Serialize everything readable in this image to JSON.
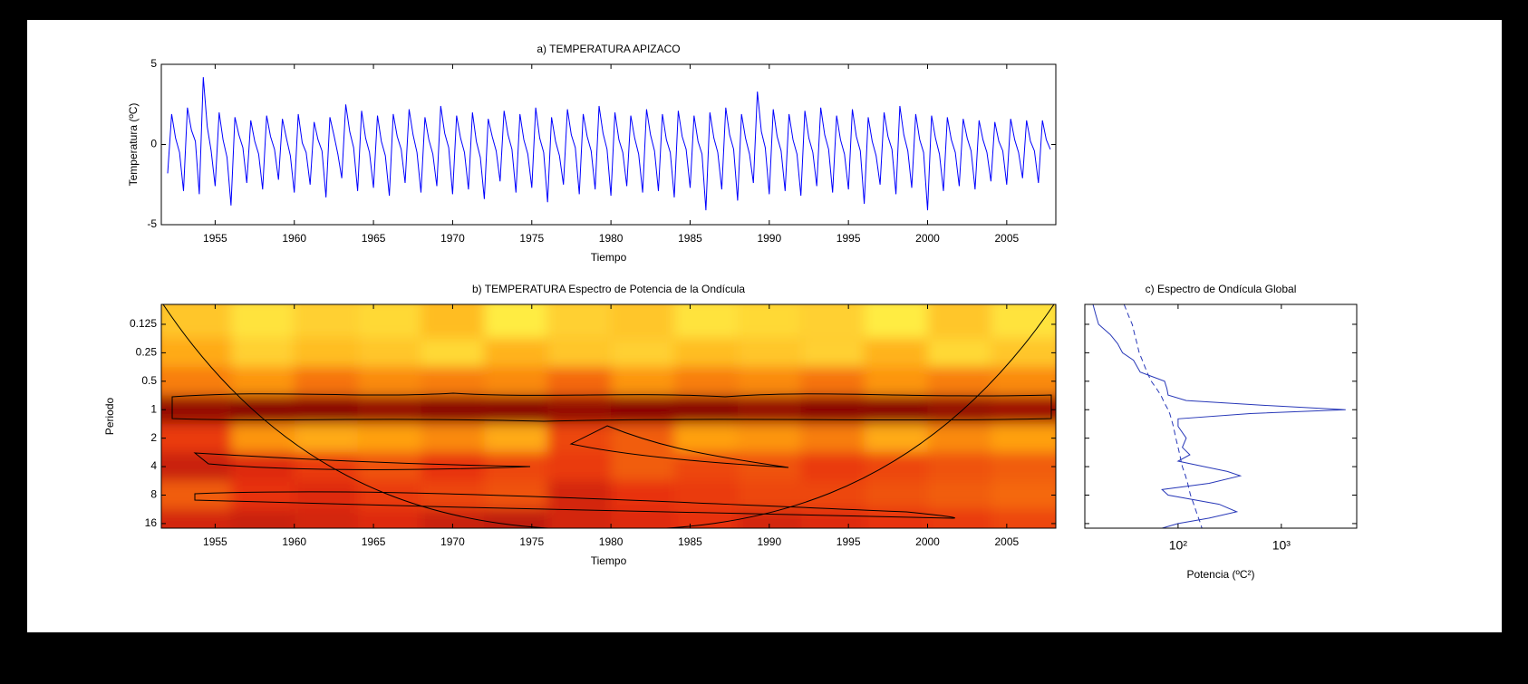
{
  "chart_data": [
    {
      "type": "line",
      "title": "a) TEMPERATURA APIZACO",
      "xlabel": "Tiempo",
      "ylabel": "Temperatura  (ºC)",
      "xlim": [
        1951.6,
        2008.1
      ],
      "ylim": [
        -5,
        5
      ],
      "xticks": [
        1955,
        1960,
        1965,
        1970,
        1975,
        1980,
        1985,
        1990,
        1995,
        2000,
        2005
      ],
      "yticks": [
        -5,
        0,
        5
      ],
      "x": [
        1952,
        1952.25,
        1952.5,
        1952.75,
        1953,
        1953.25,
        1953.5,
        1953.75,
        1954,
        1954.25,
        1954.5,
        1954.75,
        1955,
        1955.25,
        1955.5,
        1955.75,
        1956,
        1956.25,
        1956.5,
        1956.75,
        1957,
        1957.25,
        1957.5,
        1957.75,
        1958,
        1958.25,
        1958.5,
        1958.75,
        1959,
        1959.25,
        1959.5,
        1959.75,
        1960,
        1960.25,
        1960.5,
        1960.75,
        1961,
        1961.25,
        1961.5,
        1961.75,
        1962,
        1962.25,
        1962.5,
        1962.75,
        1963,
        1963.25,
        1963.5,
        1963.75,
        1964,
        1964.25,
        1964.5,
        1964.75,
        1965,
        1965.25,
        1965.5,
        1965.75,
        1966,
        1966.25,
        1966.5,
        1966.75,
        1967,
        1967.25,
        1967.5,
        1967.75,
        1968,
        1968.25,
        1968.5,
        1968.75,
        1969,
        1969.25,
        1969.5,
        1969.75,
        1970,
        1970.25,
        1970.5,
        1970.75,
        1971,
        1971.25,
        1971.5,
        1971.75,
        1972,
        1972.25,
        1972.5,
        1972.75,
        1973,
        1973.25,
        1973.5,
        1973.75,
        1974,
        1974.25,
        1974.5,
        1974.75,
        1975,
        1975.25,
        1975.5,
        1975.75,
        1976,
        1976.25,
        1976.5,
        1976.75,
        1977,
        1977.25,
        1977.5,
        1977.75,
        1978,
        1978.25,
        1978.5,
        1978.75,
        1979,
        1979.25,
        1979.5,
        1979.75,
        1980,
        1980.25,
        1980.5,
        1980.75,
        1981,
        1981.25,
        1981.5,
        1981.75,
        1982,
        1982.25,
        1982.5,
        1982.75,
        1983,
        1983.25,
        1983.5,
        1983.75,
        1984,
        1984.25,
        1984.5,
        1984.75,
        1985,
        1985.25,
        1985.5,
        1985.75,
        1986,
        1986.25,
        1986.5,
        1986.75,
        1987,
        1987.25,
        1987.5,
        1987.75,
        1988,
        1988.25,
        1988.5,
        1988.75,
        1989,
        1989.25,
        1989.5,
        1989.75,
        1990,
        1990.25,
        1990.5,
        1990.75,
        1991,
        1991.25,
        1991.5,
        1991.75,
        1992,
        1992.25,
        1992.5,
        1992.75,
        1993,
        1993.25,
        1993.5,
        1993.75,
        1994,
        1994.25,
        1994.5,
        1994.75,
        1995,
        1995.25,
        1995.5,
        1995.75,
        1996,
        1996.25,
        1996.5,
        1996.75,
        1997,
        1997.25,
        1997.5,
        1997.75,
        1998,
        1998.25,
        1998.5,
        1998.75,
        1999,
        1999.25,
        1999.5,
        1999.75,
        2000,
        2000.25,
        2000.5,
        2000.75,
        2001,
        2001.25,
        2001.5,
        2001.75,
        2002,
        2002.25,
        2002.5,
        2002.75,
        2003,
        2003.25,
        2003.5,
        2003.75,
        2004,
        2004.25,
        2004.5,
        2004.75,
        2005,
        2005.25,
        2005.5,
        2005.75,
        2006,
        2006.25,
        2006.5,
        2006.75,
        2007,
        2007.25,
        2007.5,
        2007.75
      ],
      "series": [
        {
          "color": "#0000ff",
          "values": [
            -1.8,
            1.9,
            0.4,
            -0.5,
            -2.9,
            2.3,
            0.9,
            0.2,
            -3.1,
            4.2,
            1.1,
            -0.4,
            -2.6,
            2.0,
            0.3,
            -0.8,
            -3.8,
            1.7,
            0.6,
            -0.2,
            -2.4,
            1.5,
            0.2,
            -0.6,
            -2.8,
            1.8,
            0.5,
            -0.3,
            -2.2,
            1.6,
            0.4,
            -0.7,
            -3.0,
            1.9,
            0.1,
            -0.5,
            -2.5,
            1.4,
            0.3,
            -0.4,
            -3.3,
            1.7,
            0.6,
            -0.6,
            -2.1,
            2.5,
            0.8,
            -0.2,
            -2.9,
            2.1,
            0.4,
            -0.5,
            -2.7,
            1.8,
            0.2,
            -0.7,
            -3.2,
            1.9,
            0.5,
            -0.3,
            -2.4,
            2.2,
            0.6,
            -0.5,
            -3.0,
            1.7,
            0.3,
            -0.6,
            -2.6,
            2.4,
            0.7,
            -0.2,
            -3.1,
            1.8,
            0.4,
            -0.5,
            -2.8,
            2.0,
            0.2,
            -0.8,
            -3.4,
            1.6,
            0.5,
            -0.4,
            -2.3,
            2.1,
            0.6,
            -0.3,
            -3.0,
            1.9,
            0.3,
            -0.6,
            -2.7,
            2.3,
            0.4,
            -0.5,
            -3.6,
            1.7,
            0.2,
            -0.7,
            -2.5,
            2.2,
            0.6,
            -0.2,
            -3.1,
            1.9,
            0.5,
            -0.4,
            -2.8,
            2.4,
            0.7,
            -0.3,
            -3.2,
            2.0,
            0.3,
            -0.5,
            -2.6,
            1.8,
            0.4,
            -0.6,
            -3.0,
            2.2,
            0.6,
            -0.4,
            -2.9,
            1.9,
            0.3,
            -0.5,
            -3.3,
            2.1,
            0.5,
            -0.3,
            -2.7,
            1.8,
            0.2,
            -0.6,
            -4.1,
            2.0,
            0.4,
            -0.5,
            -2.8,
            2.3,
            0.6,
            -0.3,
            -3.5,
            1.9,
            0.4,
            -0.6,
            -2.4,
            3.3,
            0.8,
            -0.2,
            -3.1,
            2.2,
            0.5,
            -0.4,
            -2.9,
            1.9,
            0.3,
            -0.6,
            -3.2,
            2.1,
            0.4,
            -0.5,
            -2.6,
            2.3,
            0.6,
            -0.3,
            -3.0,
            1.8,
            0.3,
            -0.6,
            -2.8,
            2.2,
            0.5,
            -0.4,
            -3.7,
            1.7,
            0.2,
            -0.7,
            -2.5,
            2.0,
            0.5,
            -0.3,
            -3.1,
            2.4,
            0.6,
            -0.4,
            -2.7,
            1.9,
            0.3,
            -0.5,
            -4.1,
            1.8,
            0.4,
            -0.6,
            -2.9,
            1.7,
            0.3,
            -0.5,
            -2.6,
            1.6,
            0.4,
            -0.4,
            -2.8,
            1.5,
            0.3,
            -0.5,
            -2.3,
            1.4,
            0.2,
            -0.4,
            -2.5,
            1.6,
            0.3,
            -0.5,
            -2.1,
            1.5,
            0.2,
            -0.4,
            -2.4,
            1.5,
            0.3,
            -0.3
          ]
        }
      ]
    },
    {
      "type": "heatmap",
      "title": "b) TEMPERATURA Espectro de Potencia de la Ondícula",
      "xlabel": "Tiempo",
      "ylabel": "Periodo",
      "xlim": [
        1951.6,
        2008.1
      ],
      "ylim": [
        0.077,
        17.9
      ],
      "yscale": "log",
      "yreverse": true,
      "xticks": [
        1955,
        1960,
        1965,
        1970,
        1975,
        1980,
        1985,
        1990,
        1995,
        2000,
        2005
      ],
      "yticks": [
        0.125,
        0.25,
        0.5,
        1,
        2,
        4,
        8,
        16
      ],
      "x_edges": [
        1952,
        1956,
        1960,
        1964,
        1968,
        1972,
        1976,
        1980,
        1984,
        1988,
        1992,
        1996,
        2000,
        2004,
        2008
      ],
      "periods": [
        0.125,
        0.25,
        0.5,
        1,
        2,
        4,
        8,
        16
      ],
      "zlim": [
        0,
        4
      ],
      "colors": [
        "#50e8c8",
        "#ffff50",
        "#ffa010",
        "#e83010",
        "#800000"
      ],
      "z": [
        [
          1.6,
          1.3,
          1.5,
          1.4,
          1.7,
          1.2,
          1.5,
          1.6,
          1.3,
          1.4,
          1.5,
          1.2,
          1.6,
          1.3
        ],
        [
          1.9,
          1.5,
          1.7,
          1.6,
          1.4,
          1.8,
          1.6,
          1.5,
          1.7,
          1.6,
          1.5,
          1.8,
          1.4,
          1.6
        ],
        [
          2.3,
          2.1,
          2.4,
          2.2,
          2.3,
          2.2,
          2.5,
          2.1,
          2.3,
          2.2,
          2.4,
          2.1,
          2.3,
          2.2
        ],
        [
          3.8,
          3.9,
          3.9,
          3.8,
          3.9,
          3.9,
          3.8,
          3.9,
          3.9,
          3.8,
          3.9,
          3.9,
          3.8,
          3.7
        ],
        [
          2.9,
          2.1,
          1.9,
          2.0,
          2.2,
          1.9,
          2.8,
          2.6,
          2.0,
          2.1,
          2.3,
          1.9,
          2.2,
          2.0
        ],
        [
          3.3,
          3.1,
          2.9,
          2.7,
          3.0,
          2.8,
          2.9,
          2.6,
          2.8,
          2.7,
          2.9,
          2.8,
          2.7,
          2.6
        ],
        [
          2.6,
          3.0,
          3.1,
          2.9,
          2.8,
          2.7,
          3.2,
          3.0,
          2.9,
          2.8,
          2.8,
          2.7,
          2.6,
          2.5
        ],
        [
          3.2,
          3.3,
          3.2,
          3.1,
          3.3,
          3.4,
          3.2,
          3.1,
          3.0,
          3.2,
          3.1,
          3.0,
          2.9,
          2.8
        ]
      ]
    },
    {
      "type": "line",
      "title": "c) Espectro de Ondícula Global",
      "xlabel": "Potencia (ºC²)",
      "xlim": [
        12.5,
        5370
      ],
      "xscale": "log",
      "ylim": [
        0.077,
        17.9
      ],
      "yscale": "log",
      "yreverse": true,
      "xticks": [
        {
          "value": 100,
          "label": "10²"
        },
        {
          "value": 1000,
          "label": "10³"
        }
      ],
      "y": [
        0.077,
        0.1,
        0.125,
        0.16,
        0.2,
        0.25,
        0.3,
        0.4,
        0.5,
        0.6,
        0.7,
        0.8,
        0.9,
        1,
        1.1,
        1.25,
        1.5,
        2,
        2.5,
        3,
        3.5,
        4,
        4.5,
        5,
        6,
        7,
        8,
        10,
        12,
        14,
        16,
        17.9
      ],
      "series": [
        {
          "color": "#2838b8",
          "dash": false,
          "values": [
            15,
            16,
            17,
            22,
            26,
            29,
            37,
            43,
            74,
            78,
            80,
            120,
            700,
            4200,
            500,
            100,
            100,
            120,
            110,
            130,
            100,
            180,
            300,
            400,
            200,
            70,
            80,
            250,
            370,
            200,
            100,
            70
          ]
        },
        {
          "color": "#2838b8",
          "dash": true,
          "values": [
            30,
            33,
            36,
            38,
            40,
            42,
            45,
            50,
            55,
            62,
            68,
            72,
            76,
            80,
            83,
            86,
            90,
            95,
            100,
            104,
            107,
            110,
            114,
            118,
            124,
            128,
            132,
            142,
            150,
            158,
            165,
            170
          ]
        }
      ]
    }
  ]
}
